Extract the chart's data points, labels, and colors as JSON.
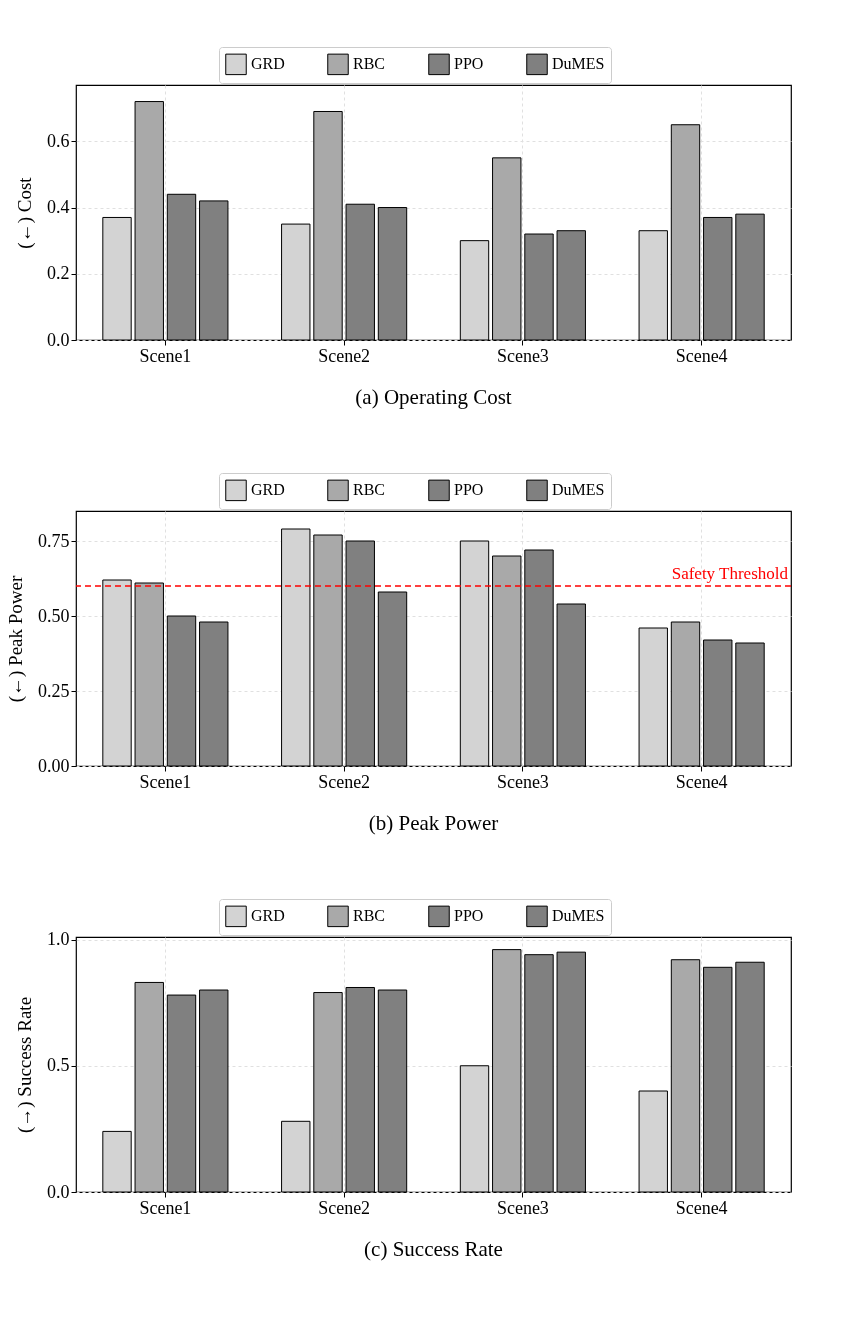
{
  "chart_data": [
    {
      "type": "bar",
      "title": "(a) Operating Cost",
      "ylabel": "(←)  Cost",
      "categories": [
        "Scene1",
        "Scene2",
        "Scene3",
        "Scene4"
      ],
      "series": [
        {
          "name": "GRD",
          "color": "#d3d3d3",
          "values": [
            0.37,
            0.35,
            0.3,
            0.33
          ]
        },
        {
          "name": "RBC",
          "color": "#a9a9a9",
          "values": [
            0.72,
            0.69,
            0.55,
            0.65
          ]
        },
        {
          "name": "PPO",
          "color": "#808080",
          "values": [
            0.44,
            0.41,
            0.32,
            0.37
          ]
        },
        {
          "name": "DuMES",
          "color": "#808080",
          "values": [
            0.42,
            0.4,
            0.33,
            0.38
          ]
        }
      ],
      "ylim": [
        0,
        0.77
      ],
      "yticks": [
        {
          "value": 0,
          "label": "0.0"
        },
        0.2,
        0.4,
        0.6
      ],
      "grid": true,
      "legend": "top"
    },
    {
      "type": "bar",
      "title": "(b) Peak Power",
      "ylabel": "(←)  Peak Power",
      "categories": [
        "Scene1",
        "Scene2",
        "Scene3",
        "Scene4"
      ],
      "series": [
        {
          "name": "GRD",
          "color": "#d3d3d3",
          "values": [
            0.62,
            0.79,
            0.75,
            0.46
          ]
        },
        {
          "name": "RBC",
          "color": "#a9a9a9",
          "values": [
            0.61,
            0.77,
            0.7,
            0.48
          ]
        },
        {
          "name": "PPO",
          "color": "#808080",
          "values": [
            0.5,
            0.75,
            0.72,
            0.42
          ]
        },
        {
          "name": "DuMES",
          "color": "#808080",
          "values": [
            0.48,
            0.58,
            0.54,
            0.41
          ]
        }
      ],
      "ylim": [
        0,
        0.85
      ],
      "yticks": [
        {
          "value": 0,
          "label": "0.00"
        },
        0.25,
        {
          "value": 0.5,
          "label": "0.50"
        },
        0.75
      ],
      "grid": true,
      "legend": "top",
      "ref_lines": [
        {
          "axis": "y",
          "value": 0.6,
          "label": "Safety Threshold",
          "color": "#ff0000",
          "line_style": "dashed"
        }
      ]
    },
    {
      "type": "bar",
      "title": "(c) Success Rate",
      "ylabel": "(→)  Success Rate",
      "categories": [
        "Scene1",
        "Scene2",
        "Scene3",
        "Scene4"
      ],
      "series": [
        {
          "name": "GRD",
          "color": "#d3d3d3",
          "values": [
            0.24,
            0.28,
            0.5,
            0.4
          ]
        },
        {
          "name": "RBC",
          "color": "#a9a9a9",
          "values": [
            0.83,
            0.79,
            0.96,
            0.92
          ]
        },
        {
          "name": "PPO",
          "color": "#808080",
          "values": [
            0.78,
            0.81,
            0.94,
            0.89
          ]
        },
        {
          "name": "DuMES",
          "color": "#808080",
          "values": [
            0.8,
            0.8,
            0.95,
            0.91
          ]
        }
      ],
      "ylim": [
        0,
        1.01
      ],
      "yticks": [
        {
          "value": 0,
          "label": "0.0"
        },
        0.5,
        {
          "value": 1,
          "label": "1.0"
        }
      ],
      "grid": true,
      "legend": "top"
    }
  ]
}
